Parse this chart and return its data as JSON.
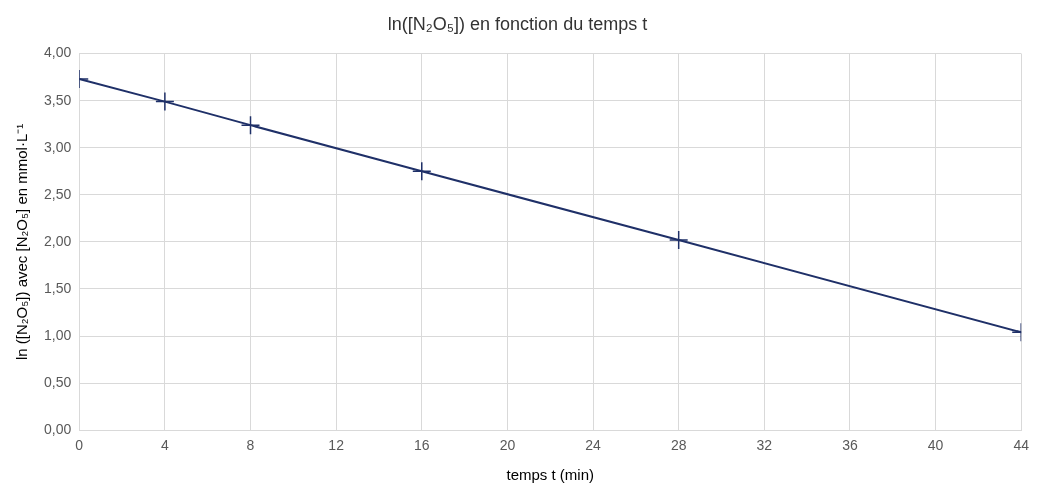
{
  "chart_data": {
    "type": "line",
    "title": "ln([N₂O₅]) en fonction du temps t",
    "xlabel": "temps t (min)",
    "ylabel": "ln ([N₂O₅]) avec [N₂O₅] en mmol·L⁻¹",
    "x": [
      0,
      4,
      8,
      16,
      28,
      44
    ],
    "series": [
      {
        "color": "#1f3068",
        "values": [
          3.73,
          3.49,
          3.24,
          2.75,
          2.02,
          1.04
        ]
      }
    ],
    "xlim": [
      0,
      44
    ],
    "xticks": [
      0,
      4,
      8,
      12,
      16,
      20,
      24,
      28,
      32,
      36,
      40,
      44
    ],
    "ylim": [
      0,
      4
    ],
    "yticks": [
      {
        "value": 0,
        "label": "0,00"
      },
      {
        "value": 0.5,
        "label": "0,50"
      },
      {
        "value": 1,
        "label": "1,00"
      },
      {
        "value": 1.5,
        "label": "1,50"
      },
      {
        "value": 2,
        "label": "2,00"
      },
      {
        "value": 2.5,
        "label": "2,50"
      },
      {
        "value": 3,
        "label": "3,00"
      },
      {
        "value": 3.5,
        "label": "3,50"
      },
      {
        "value": 4,
        "label": "4,00"
      }
    ],
    "grid": true,
    "legend": false,
    "marker": "cross",
    "line_style": "solid"
  }
}
